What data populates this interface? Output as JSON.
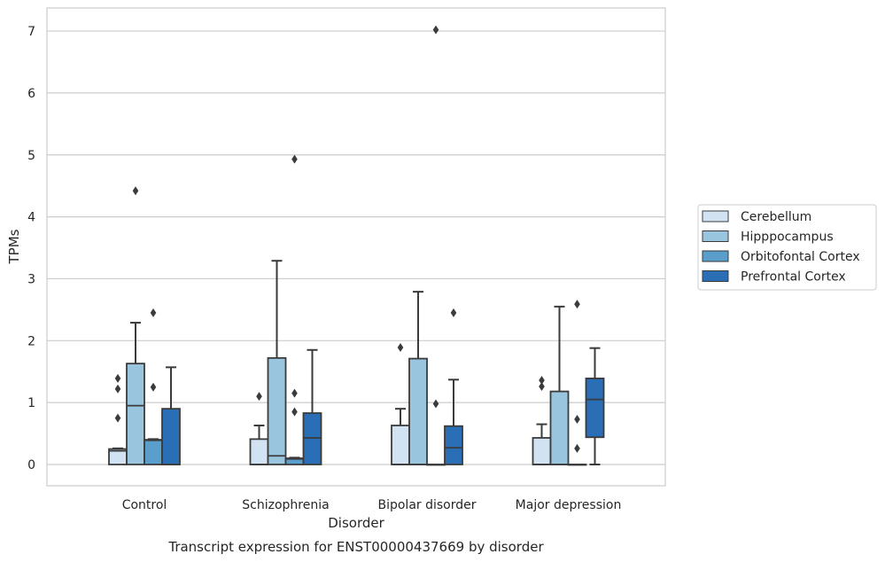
{
  "chart_data": {
    "type": "box",
    "title": "Transcript expression for ENST00000437669 by disorder",
    "xlabel": "Disorder",
    "ylabel": "TPMs",
    "ylim": [
      -0.35,
      7.4
    ],
    "yticks": [
      0,
      1,
      2,
      3,
      4,
      5,
      6,
      7
    ],
    "categories": [
      "Control",
      "Schizophrenia",
      "Bipolar disorder",
      "Major depression"
    ],
    "grid": true,
    "legend_position": "right",
    "series": [
      {
        "name": "Cerebellum",
        "color": "#d1e2f2",
        "boxes": [
          {
            "q1": 0.0,
            "median": 0.22,
            "q3": 0.25,
            "whisker_low": 0.0,
            "whisker_high": 0.26,
            "outliers": [
              0.75,
              1.22,
              1.39
            ]
          },
          {
            "q1": 0.0,
            "median": 0.0,
            "q3": 0.41,
            "whisker_low": 0.0,
            "whisker_high": 0.63,
            "outliers": [
              1.1
            ]
          },
          {
            "q1": 0.0,
            "median": 0.0,
            "q3": 0.63,
            "whisker_low": 0.0,
            "whisker_high": 0.9,
            "outliers": [
              1.89
            ]
          },
          {
            "q1": 0.0,
            "median": 0.0,
            "q3": 0.43,
            "whisker_low": 0.0,
            "whisker_high": 0.65,
            "outliers": [
              1.26,
              1.36
            ]
          }
        ]
      },
      {
        "name": "Hipppocampus",
        "color": "#9ac5de",
        "boxes": [
          {
            "q1": 0.0,
            "median": 0.95,
            "q3": 1.63,
            "whisker_low": 0.0,
            "whisker_high": 2.29,
            "outliers": [
              4.42
            ]
          },
          {
            "q1": 0.0,
            "median": 0.14,
            "q3": 1.72,
            "whisker_low": 0.0,
            "whisker_high": 3.29,
            "outliers": []
          },
          {
            "q1": 0.0,
            "median": 0.0,
            "q3": 1.71,
            "whisker_low": 0.0,
            "whisker_high": 2.79,
            "outliers": []
          },
          {
            "q1": 0.0,
            "median": 0.0,
            "q3": 1.18,
            "whisker_low": 0.0,
            "whisker_high": 2.55,
            "outliers": []
          }
        ]
      },
      {
        "name": "Orbitofontal Cortex",
        "color": "#5a9ecb",
        "boxes": [
          {
            "q1": 0.0,
            "median": 0.39,
            "q3": 0.4,
            "whisker_low": 0.0,
            "whisker_high": 0.41,
            "outliers": [
              1.25,
              2.45
            ]
          },
          {
            "q1": 0.0,
            "median": 0.09,
            "q3": 0.1,
            "whisker_low": 0.0,
            "whisker_high": 0.11,
            "outliers": [
              0.85,
              1.15,
              4.93
            ]
          },
          {
            "q1": 0.0,
            "median": 0.0,
            "q3": 0.0,
            "whisker_low": 0.0,
            "whisker_high": 0.0,
            "outliers": [
              0.98,
              7.02
            ]
          },
          {
            "q1": 0.0,
            "median": 0.0,
            "q3": 0.0,
            "whisker_low": 0.0,
            "whisker_high": 0.0,
            "outliers": [
              0.26,
              0.73,
              2.59
            ]
          }
        ]
      },
      {
        "name": "Prefrontal Cortex",
        "color": "#2a6fb5",
        "boxes": [
          {
            "q1": 0.0,
            "median": 0.0,
            "q3": 0.9,
            "whisker_low": 0.0,
            "whisker_high": 1.57,
            "outliers": []
          },
          {
            "q1": 0.0,
            "median": 0.43,
            "q3": 0.83,
            "whisker_low": 0.0,
            "whisker_high": 1.85,
            "outliers": []
          },
          {
            "q1": 0.0,
            "median": 0.27,
            "q3": 0.62,
            "whisker_low": 0.0,
            "whisker_high": 1.37,
            "outliers": [
              2.45
            ]
          },
          {
            "q1": 0.44,
            "median": 1.05,
            "q3": 1.39,
            "whisker_low": 0.0,
            "whisker_high": 1.88,
            "outliers": []
          }
        ]
      }
    ]
  }
}
